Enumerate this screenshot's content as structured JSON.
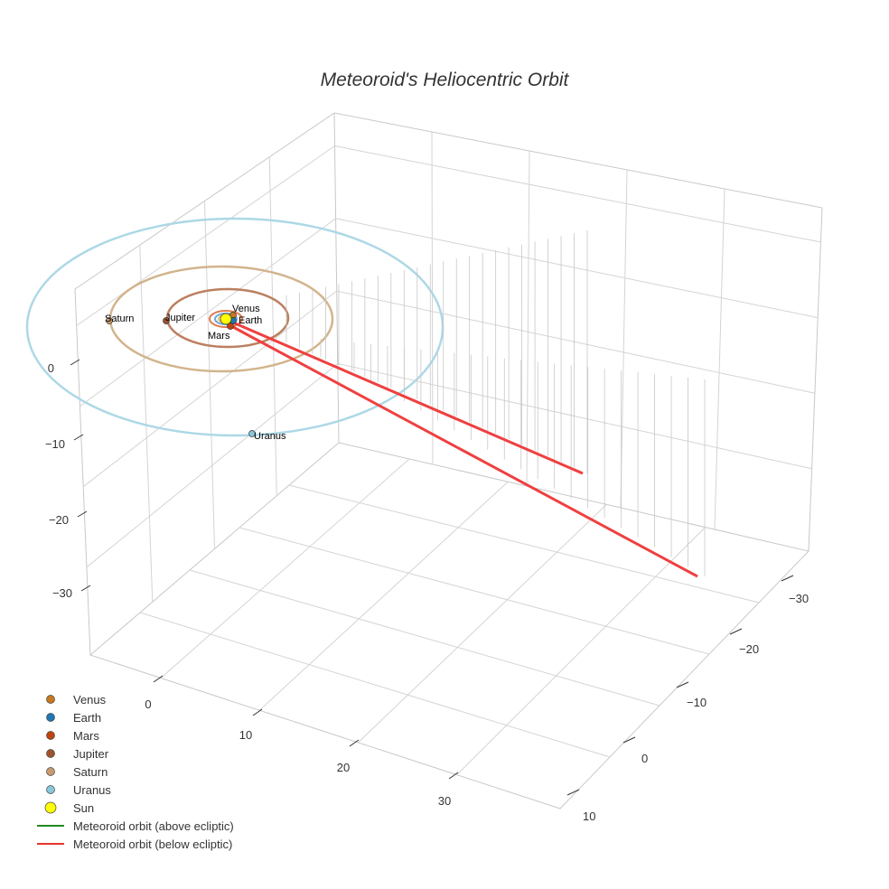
{
  "chart_data": {
    "type": "scatter3d",
    "title": "Meteoroid's Heliocentric Orbit",
    "axes": {
      "x_ticks": [
        "0",
        "10",
        "20",
        "30"
      ],
      "y_ticks": [
        "−30",
        "−20",
        "−10",
        "0",
        "10"
      ],
      "z_ticks": [
        "0",
        "−10",
        "−20",
        "−30"
      ]
    },
    "bodies": [
      {
        "name": "Venus",
        "label": "Venus",
        "color": "#c8781e",
        "orbit_radius_au": 0.72
      },
      {
        "name": "Earth",
        "label": "Earth",
        "color": "#1f77b4",
        "orbit_radius_au": 1.0
      },
      {
        "name": "Mars",
        "label": "Mars",
        "color": "#c1440e",
        "orbit_radius_au": 1.52
      },
      {
        "name": "Jupiter",
        "label": "Jupiter",
        "color": "#a0522d",
        "orbit_radius_au": 5.2
      },
      {
        "name": "Saturn",
        "label": "Saturn",
        "color": "#c89b6e",
        "orbit_radius_au": 9.5
      },
      {
        "name": "Uranus",
        "label": "Uranus",
        "color": "#88c8d8",
        "orbit_radius_au": 19.2
      },
      {
        "name": "Sun",
        "label": "",
        "color": "#ffff00",
        "orbit_radius_au": 0
      }
    ],
    "series": [
      {
        "name": "Meteoroid orbit (above ecliptic)",
        "color": "#228b22"
      },
      {
        "name": "Meteoroid orbit (below ecliptic)",
        "color": "#e8352e"
      }
    ],
    "legend": {
      "position": "bottom-left",
      "items": [
        {
          "label": "Venus",
          "kind": "marker",
          "color": "#c8781e"
        },
        {
          "label": "Earth",
          "kind": "marker",
          "color": "#1f77b4"
        },
        {
          "label": "Mars",
          "kind": "marker",
          "color": "#c1440e"
        },
        {
          "label": "Jupiter",
          "kind": "marker",
          "color": "#a0522d"
        },
        {
          "label": "Saturn",
          "kind": "marker",
          "color": "#c89b6e"
        },
        {
          "label": "Uranus",
          "kind": "marker",
          "color": "#88c8d8"
        },
        {
          "label": "Sun",
          "kind": "sun",
          "color": "#ffff00"
        },
        {
          "label": "Meteoroid orbit (above ecliptic)",
          "kind": "line",
          "color": "#228b22"
        },
        {
          "label": "Meteoroid orbit (below ecliptic)",
          "kind": "line",
          "color": "#e8352e"
        }
      ]
    }
  }
}
